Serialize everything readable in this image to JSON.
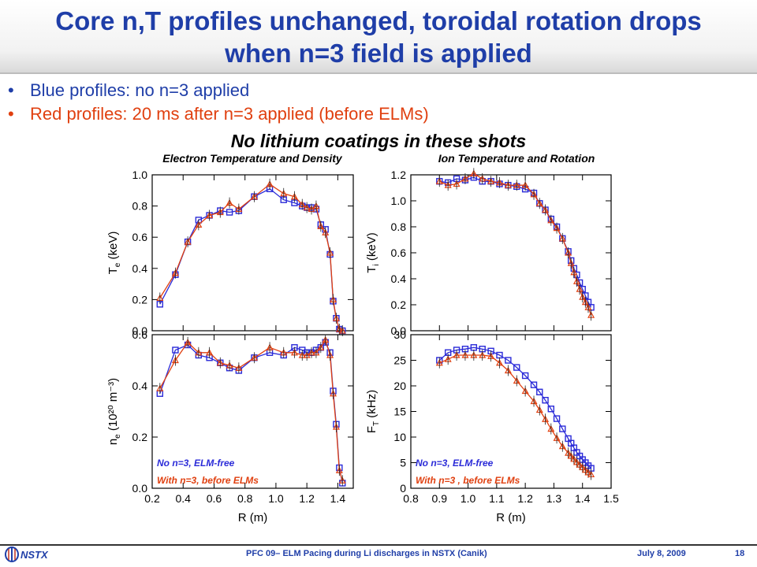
{
  "slide": {
    "title_line1": "Core n,T profiles unchanged, toroidal rotation drops",
    "title_line2": "when n=3 field is applied",
    "bullets": [
      {
        "text": "Blue profiles: no n=3 applied",
        "color": "#1f3ea8"
      },
      {
        "text": "Red profiles: 20 ms after n=3 applied (before ELMs)",
        "color": "#e04010"
      }
    ],
    "subtitle": "No lithium coatings in these shots",
    "footer": {
      "logo_text": "NSTX",
      "center": "PFC 09– ELM Pacing during Li discharges in NSTX (Canik)",
      "date": "July 8, 2009",
      "page": "18"
    }
  },
  "chart_data": [
    {
      "type": "line",
      "title": "Electron Temperature and Density",
      "panel": "Te",
      "ylabel_main": "T",
      "ylabel_sub": "e",
      "ylabel_unit": "(keV)",
      "xlim": [
        0.2,
        1.5
      ],
      "ylim": [
        0,
        1.0
      ],
      "yticks": [
        "0.0",
        "0.2",
        "0.4",
        "0.6",
        "0.8",
        "1.0"
      ],
      "series": [
        {
          "color": "#2b2bd8",
          "marker": "square",
          "x": [
            0.25,
            0.35,
            0.43,
            0.5,
            0.57,
            0.64,
            0.7,
            0.76,
            0.86,
            0.96,
            1.05,
            1.12,
            1.17,
            1.2,
            1.23,
            1.26,
            1.29,
            1.32,
            1.35,
            1.37,
            1.39,
            1.41,
            1.43
          ],
          "y": [
            0.17,
            0.36,
            0.57,
            0.71,
            0.74,
            0.77,
            0.76,
            0.77,
            0.86,
            0.91,
            0.84,
            0.82,
            0.8,
            0.79,
            0.79,
            0.78,
            0.68,
            0.65,
            0.49,
            0.19,
            0.08,
            0.01,
            0.0
          ]
        },
        {
          "color": "#e04010",
          "marker": "triangle",
          "x": [
            0.25,
            0.35,
            0.43,
            0.5,
            0.57,
            0.64,
            0.7,
            0.76,
            0.86,
            0.96,
            1.05,
            1.12,
            1.17,
            1.2,
            1.23,
            1.26,
            1.29,
            1.32,
            1.35,
            1.37,
            1.39,
            1.41,
            1.43
          ],
          "y": [
            0.21,
            0.37,
            0.57,
            0.68,
            0.74,
            0.76,
            0.82,
            0.78,
            0.86,
            0.94,
            0.88,
            0.86,
            0.81,
            0.79,
            0.78,
            0.8,
            0.67,
            0.63,
            0.5,
            0.2,
            0.08,
            0.01,
            0.0
          ]
        }
      ]
    },
    {
      "type": "line",
      "title": "Ion Temperature and Rotation",
      "panel": "Ti",
      "ylabel_main": "T",
      "ylabel_sub": "i",
      "ylabel_unit": "(keV)",
      "xlim": [
        0.8,
        1.5
      ],
      "ylim": [
        0,
        1.2
      ],
      "yticks": [
        "0.0",
        "0.2",
        "0.4",
        "0.6",
        "0.8",
        "1.0",
        "1.2"
      ],
      "series": [
        {
          "color": "#2b2bd8",
          "marker": "square",
          "x": [
            0.9,
            0.93,
            0.96,
            0.99,
            1.02,
            1.05,
            1.08,
            1.11,
            1.14,
            1.17,
            1.2,
            1.23,
            1.25,
            1.27,
            1.29,
            1.31,
            1.33,
            1.35,
            1.36,
            1.37,
            1.38,
            1.39,
            1.4,
            1.41,
            1.42,
            1.43
          ],
          "y": [
            1.15,
            1.14,
            1.17,
            1.16,
            1.18,
            1.15,
            1.15,
            1.13,
            1.12,
            1.11,
            1.09,
            1.06,
            0.98,
            0.93,
            0.86,
            0.8,
            0.71,
            0.61,
            0.54,
            0.48,
            0.43,
            0.37,
            0.32,
            0.27,
            0.22,
            0.18
          ]
        },
        {
          "color": "#e04010",
          "marker": "triangle",
          "x": [
            0.9,
            0.93,
            0.96,
            0.99,
            1.02,
            1.05,
            1.08,
            1.11,
            1.14,
            1.17,
            1.2,
            1.23,
            1.25,
            1.27,
            1.29,
            1.31,
            1.33,
            1.35,
            1.36,
            1.37,
            1.38,
            1.39,
            1.4,
            1.41,
            1.42,
            1.43
          ],
          "y": [
            1.15,
            1.12,
            1.13,
            1.17,
            1.21,
            1.17,
            1.15,
            1.14,
            1.12,
            1.12,
            1.12,
            1.05,
            0.98,
            0.93,
            0.85,
            0.79,
            0.71,
            0.6,
            0.52,
            0.45,
            0.38,
            0.32,
            0.26,
            0.22,
            0.18,
            0.12
          ]
        }
      ]
    },
    {
      "type": "line",
      "panel": "ne",
      "ylabel_main": "n",
      "ylabel_sub": "e",
      "ylabel_unit": "(10²⁰ m⁻³)",
      "xlabel": "R (m)",
      "xlim": [
        0.2,
        1.5
      ],
      "ylim": [
        0,
        0.6
      ],
      "xticks": [
        "0.2",
        "0.4",
        "0.6",
        "0.8",
        "1.0",
        "1.2",
        "1.4"
      ],
      "yticks": [
        "0.0",
        "0.2",
        "0.4",
        "0.6"
      ],
      "legend": [
        {
          "text": "No n=3, ELM-free",
          "color": "#2b2bd8"
        },
        {
          "text": "With n=3, before ELMs",
          "color": "#e04010"
        }
      ],
      "series": [
        {
          "color": "#2b2bd8",
          "marker": "square",
          "x": [
            0.25,
            0.35,
            0.43,
            0.5,
            0.57,
            0.64,
            0.7,
            0.76,
            0.86,
            0.96,
            1.05,
            1.12,
            1.17,
            1.2,
            1.23,
            1.26,
            1.29,
            1.32,
            1.35,
            1.37,
            1.39,
            1.41,
            1.43
          ],
          "y": [
            0.37,
            0.54,
            0.56,
            0.52,
            0.51,
            0.49,
            0.47,
            0.46,
            0.51,
            0.53,
            0.52,
            0.55,
            0.54,
            0.53,
            0.53,
            0.54,
            0.55,
            0.57,
            0.53,
            0.38,
            0.25,
            0.08,
            0.02
          ]
        },
        {
          "color": "#e04010",
          "marker": "triangle",
          "x": [
            0.25,
            0.35,
            0.43,
            0.5,
            0.57,
            0.64,
            0.7,
            0.76,
            0.86,
            0.96,
            1.05,
            1.12,
            1.17,
            1.2,
            1.23,
            1.26,
            1.29,
            1.32,
            1.35,
            1.37,
            1.39,
            1.41,
            1.43
          ],
          "y": [
            0.39,
            0.5,
            0.57,
            0.53,
            0.53,
            0.49,
            0.48,
            0.47,
            0.51,
            0.55,
            0.53,
            0.53,
            0.52,
            0.52,
            0.53,
            0.53,
            0.55,
            0.58,
            0.52,
            0.37,
            0.24,
            0.07,
            0.03
          ]
        }
      ]
    },
    {
      "type": "line",
      "panel": "FT",
      "ylabel_main": "F",
      "ylabel_sub": "T",
      "ylabel_unit": "(kHz)",
      "xlabel": "R (m)",
      "xlim": [
        0.8,
        1.5
      ],
      "ylim": [
        0,
        30
      ],
      "xticks": [
        "0.8",
        "0.9",
        "1.0",
        "1.1",
        "1.2",
        "1.3",
        "1.4",
        "1.5"
      ],
      "yticks": [
        "0",
        "5",
        "10",
        "15",
        "20",
        "25",
        "30"
      ],
      "legend": [
        {
          "text": "No n=3, ELM-free",
          "color": "#2b2bd8"
        },
        {
          "text": "With n=3 , before ELMs",
          "color": "#e04010"
        }
      ],
      "series": [
        {
          "color": "#2b2bd8",
          "marker": "square",
          "x": [
            0.9,
            0.93,
            0.96,
            0.99,
            1.02,
            1.05,
            1.08,
            1.11,
            1.14,
            1.17,
            1.2,
            1.23,
            1.25,
            1.27,
            1.29,
            1.31,
            1.33,
            1.35,
            1.36,
            1.37,
            1.38,
            1.39,
            1.4,
            1.41,
            1.42,
            1.43
          ],
          "y": [
            25,
            26.5,
            27,
            27.2,
            27.5,
            27.2,
            26.8,
            26,
            25,
            23.6,
            22,
            20.2,
            18.8,
            17.2,
            15.5,
            13.6,
            11.6,
            9.7,
            8.8,
            7.9,
            7,
            6.3,
            5.6,
            5.0,
            4.4,
            3.9
          ]
        },
        {
          "color": "#e04010",
          "marker": "triangle",
          "x": [
            0.9,
            0.93,
            0.96,
            0.99,
            1.02,
            1.05,
            1.08,
            1.11,
            1.14,
            1.17,
            1.2,
            1.23,
            1.25,
            1.27,
            1.29,
            1.31,
            1.33,
            1.35,
            1.36,
            1.37,
            1.38,
            1.39,
            1.4,
            1.41,
            1.42,
            1.43
          ],
          "y": [
            24.5,
            25.2,
            26,
            26,
            26,
            26,
            25.8,
            24.5,
            23,
            21,
            19,
            17,
            15.3,
            13.5,
            11.6,
            9.8,
            8.2,
            6.9,
            6.3,
            5.7,
            5.1,
            4.6,
            4.1,
            3.6,
            3.1,
            2.7
          ]
        }
      ]
    }
  ]
}
